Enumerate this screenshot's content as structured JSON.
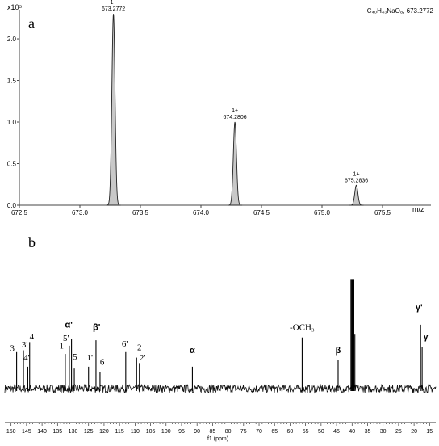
{
  "chart_data": [
    {
      "panel_label": "a",
      "type": "area",
      "kind": "mass-spectrum",
      "formula_label": "C₄₀H₄₃NaO₈, 673.2772",
      "y_exponent_label": "x10⁵",
      "xlabel": "m/z",
      "xlim": [
        672.5,
        675.9
      ],
      "ylim": [
        0,
        2.35
      ],
      "x_ticks": [
        "672.5",
        "673.0",
        "673.5",
        "674.0",
        "674.5",
        "675.0",
        "675.5"
      ],
      "y_ticks": [
        "0.0",
        "0.5",
        "1.0",
        "1.5",
        "2.0"
      ],
      "peaks": [
        {
          "x": 673.2772,
          "y": 2.3,
          "charge": "1+",
          "label": "673.2772"
        },
        {
          "x": 674.2806,
          "y": 1.0,
          "charge": "1+",
          "label": "674.2806"
        },
        {
          "x": 675.2836,
          "y": 0.24,
          "charge": "1+",
          "label": "675.2836"
        }
      ],
      "grid": false
    },
    {
      "panel_label": "b",
      "type": "line",
      "kind": "13C-NMR",
      "xlabel": "f1 (ppm)",
      "xlim": [
        152,
        13
      ],
      "x_reversed": true,
      "x_ticks": [
        "150",
        "145",
        "140",
        "135",
        "130",
        "125",
        "120",
        "115",
        "110",
        "105",
        "100",
        "95",
        "90",
        "85",
        "80",
        "75",
        "70",
        "65",
        "60",
        "55",
        "50",
        "45",
        "40",
        "35",
        "30",
        "25",
        "20",
        "15"
      ],
      "peaks": [
        {
          "ppm": 148.2,
          "h": 0.4
        },
        {
          "ppm": 146.0,
          "h": 0.42
        },
        {
          "ppm": 144.6,
          "h": 0.24
        },
        {
          "ppm": 144.0,
          "h": 0.51
        },
        {
          "ppm": 132.5,
          "h": 0.38
        },
        {
          "ppm": 131.2,
          "h": 0.47
        },
        {
          "ppm": 130.5,
          "h": 0.54
        },
        {
          "ppm": 129.6,
          "h": 0.22
        },
        {
          "ppm": 125.0,
          "h": 0.24
        },
        {
          "ppm": 122.6,
          "h": 0.53
        },
        {
          "ppm": 121.3,
          "h": 0.18
        },
        {
          "ppm": 113.0,
          "h": 0.4
        },
        {
          "ppm": 109.5,
          "h": 0.34
        },
        {
          "ppm": 108.6,
          "h": 0.28
        },
        {
          "ppm": 91.5,
          "h": 0.24
        },
        {
          "ppm": 56.1,
          "h": 0.56
        },
        {
          "ppm": 44.5,
          "h": 0.31
        },
        {
          "ppm": 40.3,
          "h": 1.2
        },
        {
          "ppm": 39.9,
          "h": 1.2
        },
        {
          "ppm": 39.5,
          "h": 1.2
        },
        {
          "ppm": 39.1,
          "h": 0.6
        },
        {
          "ppm": 17.9,
          "h": 0.7
        },
        {
          "ppm": 17.4,
          "h": 0.46
        }
      ],
      "annotations": [
        {
          "text": "3",
          "ppm": 149.6,
          "level": 0.41,
          "font": "serif"
        },
        {
          "text": "3'",
          "ppm": 145.6,
          "level": 0.45,
          "font": "serif"
        },
        {
          "text": "4",
          "ppm": 143.3,
          "level": 0.54,
          "font": "serif"
        },
        {
          "text": "4'",
          "ppm": 145.0,
          "level": 0.31,
          "font": "serif"
        },
        {
          "text": "1",
          "ppm": 133.7,
          "level": 0.44,
          "font": "serif"
        },
        {
          "text": "5'",
          "ppm": 132.3,
          "level": 0.52,
          "font": "serif"
        },
        {
          "text": "5",
          "ppm": 129.4,
          "level": 0.32,
          "font": "serif"
        },
        {
          "text": "α'",
          "ppm": 131.4,
          "level": 0.67,
          "font": "sans"
        },
        {
          "text": "β'",
          "ppm": 122.4,
          "level": 0.64,
          "font": "sans"
        },
        {
          "text": "1'",
          "ppm": 124.6,
          "level": 0.31,
          "font": "serif"
        },
        {
          "text": "6",
          "ppm": 120.6,
          "level": 0.26,
          "font": "serif"
        },
        {
          "text": "6'",
          "ppm": 113.3,
          "level": 0.46,
          "font": "serif"
        },
        {
          "text": "2",
          "ppm": 108.6,
          "level": 0.42,
          "font": "serif"
        },
        {
          "text": "2'",
          "ppm": 107.6,
          "level": 0.31,
          "font": "serif"
        },
        {
          "text": "α",
          "ppm": 91.5,
          "level": 0.39,
          "font": "sans"
        },
        {
          "text": "-OCH₃",
          "ppm": 56.1,
          "level": 0.64,
          "font": "serif"
        },
        {
          "text": "β",
          "ppm": 44.5,
          "level": 0.39,
          "font": "sans"
        },
        {
          "text": "γ'",
          "ppm": 18.4,
          "level": 0.86,
          "font": "sans"
        },
        {
          "text": "γ",
          "ppm": 16.2,
          "level": 0.54,
          "font": "sans"
        }
      ],
      "grid": false
    }
  ]
}
